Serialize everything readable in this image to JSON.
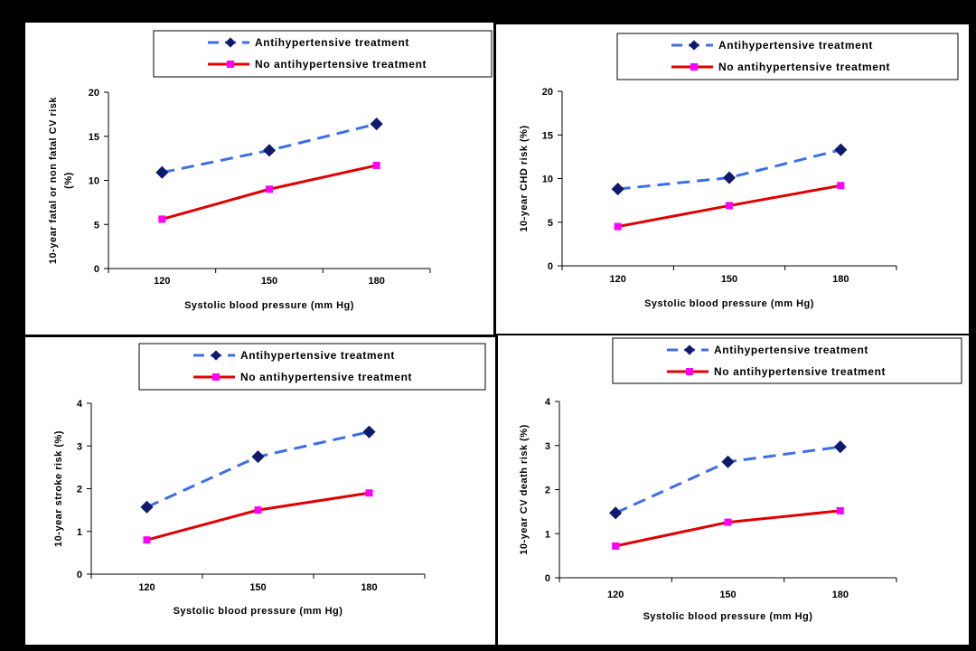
{
  "colors": {
    "series1_line": "#3b6fe8",
    "series1_marker": "#0f1a6e",
    "series2_line": "#e00000",
    "series2_marker": "#ff00ff"
  },
  "chart_data": [
    {
      "type": "line",
      "legend_position": "top",
      "categories": [
        "120",
        "150",
        "180"
      ],
      "series": [
        {
          "name": "Antihypertensive treatment",
          "values": [
            10.9,
            13.4,
            16.4
          ]
        },
        {
          "name": "No antihypertensive treatment",
          "values": [
            5.6,
            9.0,
            11.7
          ]
        }
      ],
      "ylabel_line1": "10-year fatal or non fatal CV risk",
      "ylabel_line2": "(%)",
      "xlabel": "Systolic blood pressure (mm Hg)",
      "ylim": [
        0,
        20
      ],
      "yticks": [
        "0",
        "5",
        "10",
        "15",
        "20"
      ]
    },
    {
      "type": "line",
      "legend_position": "top",
      "categories": [
        "120",
        "150",
        "180"
      ],
      "series": [
        {
          "name": "Antihypertensive treatment",
          "values": [
            8.8,
            10.1,
            13.3
          ]
        },
        {
          "name": "No antihypertensive treatment",
          "values": [
            4.5,
            6.9,
            9.2
          ]
        }
      ],
      "ylabel_line1": "10-year CHD risk (%)",
      "ylabel_line2": "",
      "xlabel": "Systolic blood pressure (mm Hg)",
      "ylim": [
        0,
        20
      ],
      "yticks": [
        "0",
        "5",
        "10",
        "15",
        "20"
      ]
    },
    {
      "type": "line",
      "legend_position": "top",
      "categories": [
        "120",
        "150",
        "180"
      ],
      "series": [
        {
          "name": "Antihypertensive treatment",
          "values": [
            1.57,
            2.75,
            3.33
          ]
        },
        {
          "name": "No antihypertensive treatment",
          "values": [
            0.8,
            1.5,
            1.9
          ]
        }
      ],
      "ylabel_line1": "10-year stroke risk (%)",
      "ylabel_line2": "",
      "xlabel": "Systolic blood pressure (mm Hg)",
      "ylim": [
        0,
        4
      ],
      "yticks": [
        "0",
        "1",
        "2",
        "3",
        "4"
      ]
    },
    {
      "type": "line",
      "legend_position": "top",
      "categories": [
        "120",
        "150",
        "180"
      ],
      "series": [
        {
          "name": "Antihypertensive treatment",
          "values": [
            1.47,
            2.63,
            2.97
          ]
        },
        {
          "name": "No antihypertensive treatment",
          "values": [
            0.72,
            1.26,
            1.52
          ]
        }
      ],
      "ylabel_line1": "10-year CV death risk (%)",
      "ylabel_line2": "",
      "xlabel": "Systolic blood pressure (mm Hg)",
      "ylim": [
        0,
        4
      ],
      "yticks": [
        "0",
        "1",
        "2",
        "3",
        "4"
      ]
    }
  ]
}
